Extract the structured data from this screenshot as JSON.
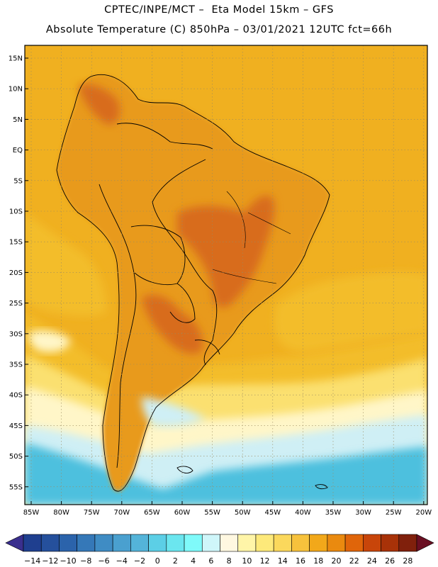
{
  "title_line1": "CPTEC/INPE/MCT –  Eta Model 15km – GFS",
  "title_line2": "Absolute Temperature (C) 850hPa – 03/01/2021 12UTC fct=66h",
  "lat_labels": [
    "15N",
    "10N",
    "5N",
    "EQ",
    "5S",
    "10S",
    "15S",
    "20S",
    "25S",
    "30S",
    "35S",
    "40S",
    "45S",
    "50S",
    "55S"
  ],
  "lon_labels": [
    "85W",
    "80W",
    "75W",
    "70W",
    "65W",
    "60W",
    "55W",
    "50W",
    "45W",
    "40W",
    "35W",
    "30W",
    "25W",
    "20W"
  ],
  "colorbar": {
    "labels": [
      "-14",
      "-12",
      "-10",
      "-8",
      "-6",
      "-4",
      "-2",
      "0",
      "2",
      "4",
      "6",
      "8",
      "10",
      "12",
      "14",
      "16",
      "18",
      "20",
      "22",
      "24",
      "26",
      "28"
    ],
    "colors": [
      "#1f3f8f",
      "#25509c",
      "#2b63ab",
      "#3578b8",
      "#3f8cc4",
      "#4aa0cf",
      "#54b4d9",
      "#5ccfe6",
      "#6be6ef",
      "#7ffafa",
      "#cff6fa",
      "#fff8e1",
      "#fff5a8",
      "#fde97a",
      "#fbd85c",
      "#f7c23c",
      "#f2a81a",
      "#ea8a0f",
      "#e0650a",
      "#c8450a",
      "#a83208",
      "#80200c"
    ],
    "under_color": "#3a2f8e",
    "over_color": "#6a0f22"
  },
  "map": {
    "background_color": "#f0b020",
    "land_color": "#e89a1e",
    "hot_color": "#d86c1a",
    "warm_color": "#f3bd2c",
    "mild_color": "#fbe070",
    "cool_color": "#fff6c8",
    "cold_color": "#cfeff5",
    "colder_color": "#7fe0f0",
    "coldest_color": "#4ec0de"
  }
}
